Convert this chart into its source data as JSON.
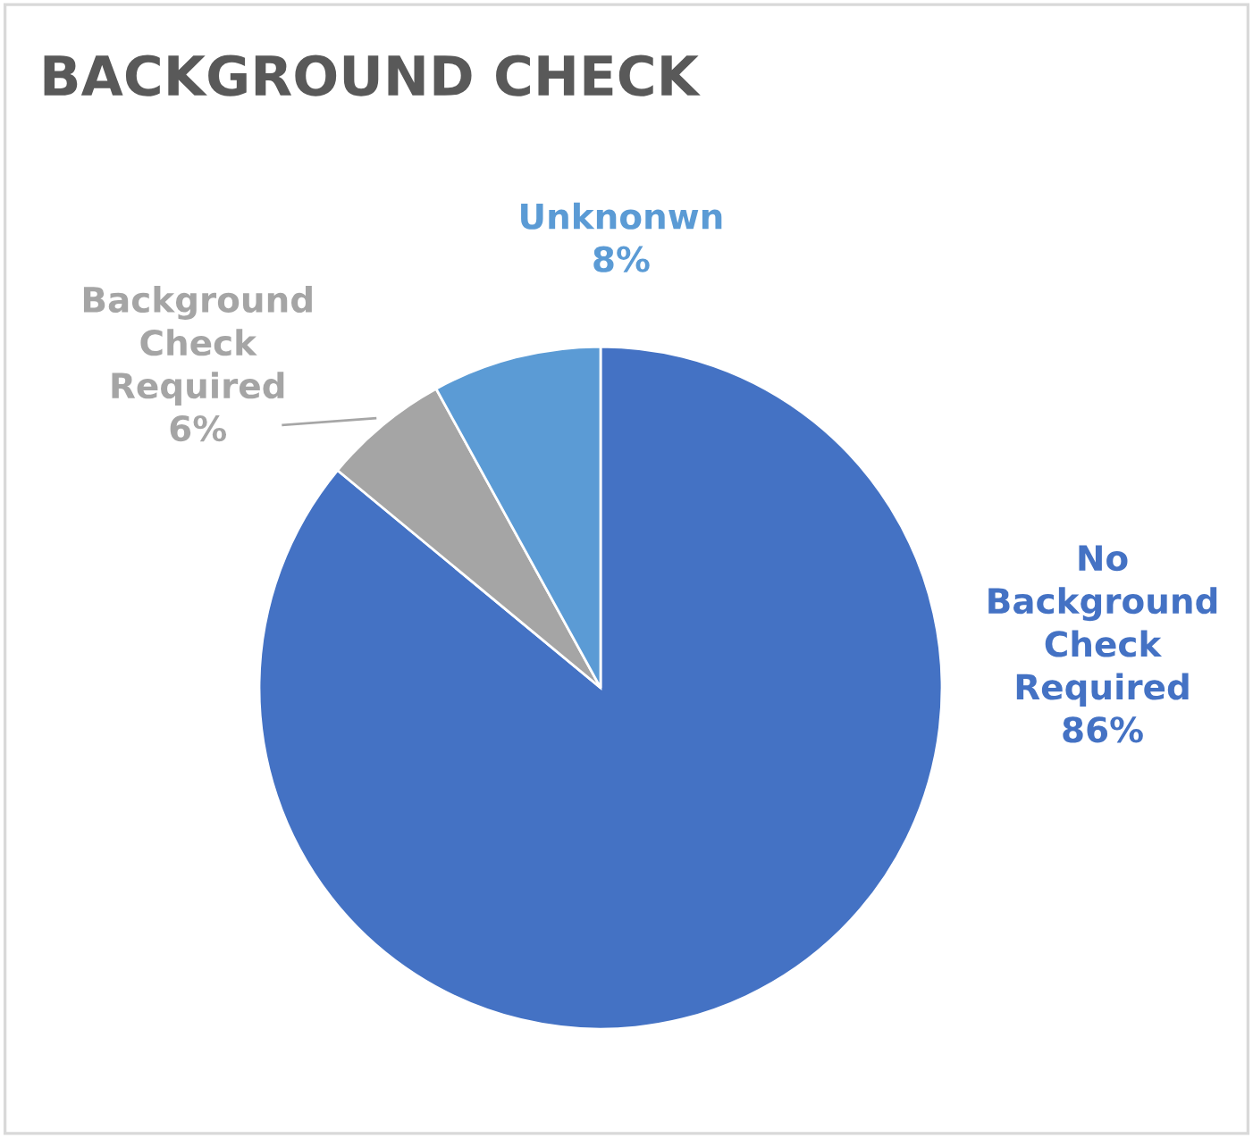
{
  "chart_data": {
    "type": "pie",
    "title": "BACKGROUND CHECK",
    "categories": [
      "No\nBackground\nCheck\nRequired",
      "Background\nCheck\nRequired",
      "Unknonwn"
    ],
    "values": [
      86,
      6,
      8
    ],
    "colors": [
      "#4472c4",
      "#a5a5a5",
      "#5b9bd5"
    ],
    "value_labels": [
      "86%",
      "6%",
      "8%"
    ]
  }
}
